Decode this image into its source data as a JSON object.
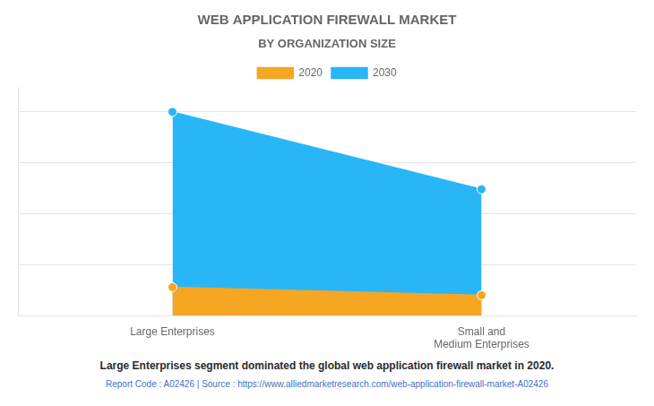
{
  "chart_data": {
    "type": "area",
    "title": "WEB APPLICATION FIREWALL MARKET",
    "subtitle": "BY ORGANIZATION SIZE",
    "categories": [
      "Large Enterprises",
      "Small and\nMedium Enterprises"
    ],
    "series": [
      {
        "name": "2020",
        "color": "#F5A623",
        "values": [
          0.14,
          0.1
        ]
      },
      {
        "name": "2030",
        "color": "#29B6F6",
        "values": [
          1.0,
          0.62
        ]
      }
    ],
    "ylim": [
      0,
      1.12
    ],
    "yticks": [
      0.25,
      0.5,
      0.75,
      1.0
    ],
    "grid": true,
    "legend": "top",
    "tick_labels": "x",
    "footer": "Large Enterprises segment dominated the global web application firewall market in 2020.",
    "source": "Report Code : A02426  |  Source : https://www.alliedmarketresearch.com/web-application-firewall-market-A02426"
  }
}
